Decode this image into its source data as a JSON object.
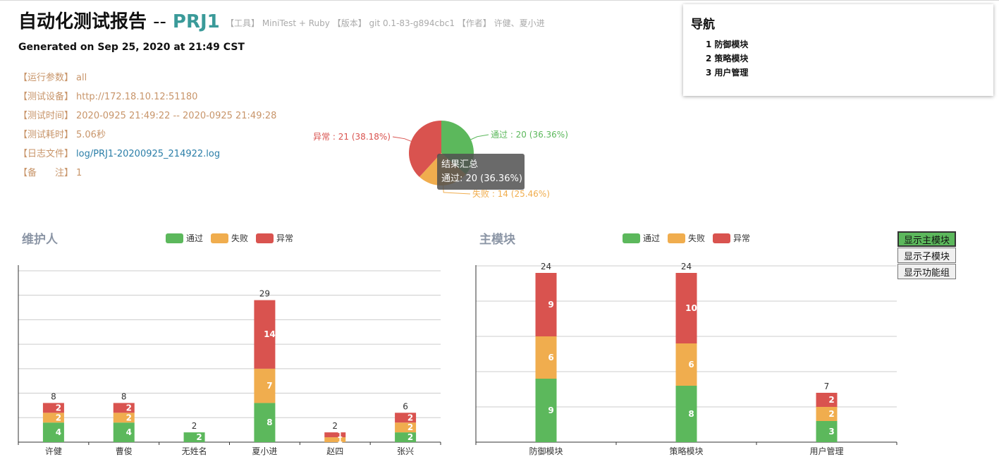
{
  "header": {
    "title": "自动化测试报告",
    "title_sep": "--",
    "project": "PRJ1",
    "meta": "【工具】 MiniTest + Ruby 【版本】 git 0.1-83-g894cbc1 【作者】 许健、夏小进",
    "generated": "Generated on Sep 25, 2020 at 21:49 CST"
  },
  "info": [
    {
      "key": "【运行参数】",
      "value": "all"
    },
    {
      "key": "【测试设备】",
      "value": "http://172.18.10.12:51180"
    },
    {
      "key": "【测试时间】",
      "value": "2020-0925 21:49:22 -- 2020-0925 21:49:28"
    },
    {
      "key": "【测试耗时】",
      "value": "5.06秒"
    },
    {
      "key": "【日志文件】",
      "value": "log/PRJ1-20200925_214922.log"
    },
    {
      "key": "【备　　注】",
      "value": "1"
    }
  ],
  "nav": {
    "heading": "导航",
    "items": [
      {
        "num": "1",
        "label": "防御模块"
      },
      {
        "num": "2",
        "label": "策略模块"
      },
      {
        "num": "3",
        "label": "用户管理"
      }
    ]
  },
  "buttons": {
    "main_module": "显示主模块",
    "sub_module": "显示子模块",
    "func_group": "显示功能组"
  },
  "colors": {
    "pass": "#5cb85c",
    "fail": "#f0ad4e",
    "error": "#d9534f",
    "teal": "#3a9a99"
  },
  "tooltip": {
    "title": "结果汇总",
    "text": "通过: 20 (36.36%)"
  },
  "chart_data": [
    {
      "type": "pie",
      "slices": [
        {
          "name": "通过",
          "value": 20,
          "label": "通过 : 20 (36.36%)"
        },
        {
          "name": "失败",
          "value": 14,
          "label": "失败 : 14 (25.46%)"
        },
        {
          "name": "异常",
          "value": 21,
          "label": "异常 : 21 (38.18%)"
        }
      ]
    },
    {
      "type": "bar",
      "title": "维护人",
      "categories": [
        "许健",
        "曹俊",
        "无姓名",
        "夏小进",
        "赵四",
        "张兴"
      ],
      "series": [
        {
          "name": "通过",
          "values": [
            4,
            4,
            2,
            8,
            0,
            2
          ]
        },
        {
          "name": "失败",
          "values": [
            2,
            2,
            0,
            7,
            1,
            2
          ]
        },
        {
          "name": "异常",
          "values": [
            2,
            2,
            0,
            14,
            1,
            2
          ]
        }
      ],
      "totals": [
        8,
        8,
        2,
        29,
        2,
        6
      ],
      "ylim": [
        0,
        36
      ],
      "grid": true,
      "legend": "top-center"
    },
    {
      "type": "bar",
      "title": "主模块",
      "categories": [
        "防御模块",
        "策略模块",
        "用户管理"
      ],
      "series": [
        {
          "name": "通过",
          "values": [
            9,
            8,
            3
          ]
        },
        {
          "name": "失败",
          "values": [
            6,
            6,
            2
          ]
        },
        {
          "name": "异常",
          "values": [
            9,
            10,
            2
          ]
        }
      ],
      "totals": [
        24,
        24,
        7
      ],
      "ylim": [
        0,
        25
      ],
      "grid": true,
      "legend": "top-center"
    }
  ]
}
